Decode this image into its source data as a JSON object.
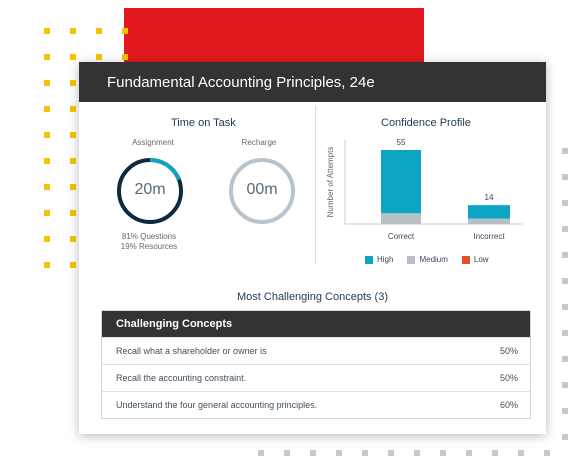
{
  "card": {
    "title": "Fundamental Accounting Principles, 24e"
  },
  "time_on_task": {
    "title": "Time on Task",
    "assignment_label": "Assignment",
    "assignment_value": "20m",
    "assignment_progress": 0.81,
    "recharge_label": "Recharge",
    "recharge_value": "00m",
    "breakdown_questions": "81% Questions",
    "breakdown_resources": "19% Resources"
  },
  "confidence": {
    "title": "Confidence Profile",
    "legend": [
      "High",
      "Medium",
      "Low"
    ]
  },
  "colors": {
    "accent": "#0ea4c4",
    "medium": "#b8bfc6",
    "low": "#e0542a",
    "ring_dark": "#0f2a3d",
    "ring_light": "#b7c4cd",
    "brand_red": "#e3191f",
    "header_dark": "#333333"
  },
  "chart_data": {
    "type": "bar",
    "categories": [
      "Correct",
      "Incorrect"
    ],
    "ylabel": "Number of Attempts",
    "series": [
      {
        "name": "High",
        "values": [
          47,
          10
        ]
      },
      {
        "name": "Medium",
        "values": [
          8,
          4
        ]
      },
      {
        "name": "Low",
        "values": [
          0,
          0
        ]
      }
    ],
    "totals": [
      "55",
      "14"
    ],
    "ylim": [
      0,
      55
    ]
  },
  "concepts": {
    "title": "Most Challenging Concepts (3)",
    "header": "Challenging Concepts",
    "rows": [
      {
        "label": "Recall what a shareholder or owner is",
        "value": "50%"
      },
      {
        "label": "Recall the accounting constraint.",
        "value": "50%"
      },
      {
        "label": "Understand the four general accounting principles.",
        "value": "60%"
      }
    ]
  }
}
